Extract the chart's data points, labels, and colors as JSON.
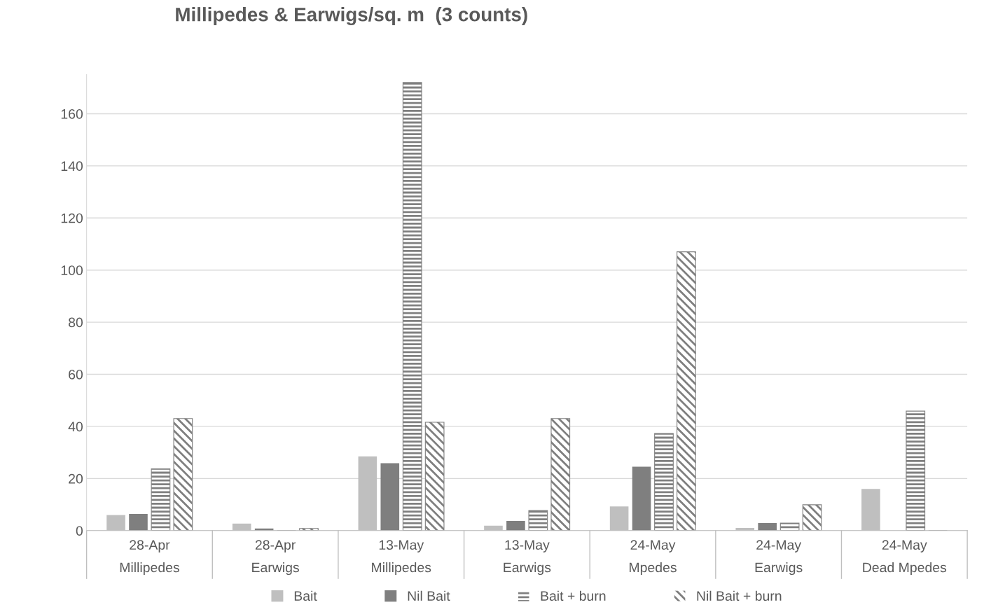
{
  "chart_data": {
    "type": "bar",
    "title": "Millipedes & Earwigs/sq. m  (3 counts)",
    "categories": [
      "28-Apr\nMillipedes",
      "28-Apr\nEarwigs",
      "13-May\nMillipedes",
      "13-May\nEarwigs",
      "24-May\nMpedes",
      "24-May\nEarwigs",
      "24-May\nDead Mpedes"
    ],
    "series": [
      {
        "name": "Bait",
        "color": "#bfbfbf",
        "values": [
          6,
          2.7,
          28.5,
          1.9,
          9.3,
          1,
          16
        ]
      },
      {
        "name": "Nil Bait",
        "color": "#7f7f7f",
        "values": [
          6.4,
          0.8,
          25.9,
          3.7,
          24.5,
          2.9,
          0
        ]
      },
      {
        "name": "Bait + burn",
        "color": "#7f7f7f",
        "values": [
          23.7,
          0,
          172,
          7.7,
          37.3,
          2.9,
          45.9
        ]
      },
      {
        "name": "Nil Bait + burn",
        "color": "#7f7f7f",
        "values": [
          43,
          0.8,
          41.6,
          43,
          107,
          9.9,
          0
        ]
      }
    ],
    "ylim": [
      0,
      175
    ],
    "yticks": [
      0,
      20,
      40,
      60,
      80,
      100,
      120,
      140,
      160
    ],
    "grid": "y",
    "legend": "bottom"
  }
}
